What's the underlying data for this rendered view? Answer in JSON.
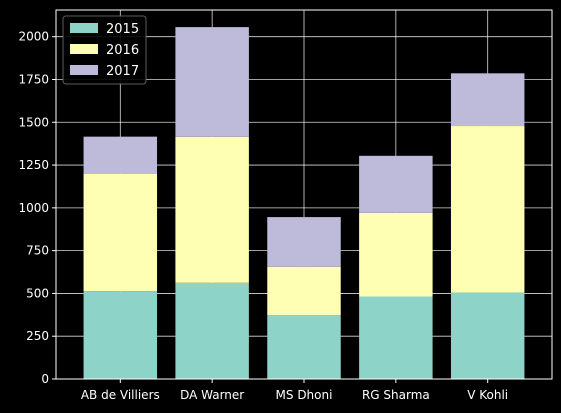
{
  "chart_data": {
    "type": "bar",
    "stacked": true,
    "categories": [
      "AB de Villiers",
      "DA Warner",
      "MS Dhoni",
      "RG Sharma",
      "V Kohli"
    ],
    "series": [
      {
        "name": "2015",
        "values": [
          513,
          562,
          372,
          482,
          505
        ],
        "color": "#8dd3c7"
      },
      {
        "name": "2016",
        "values": [
          687,
          853,
          284,
          489,
          973
        ],
        "color": "#ffffb3"
      },
      {
        "name": "2017",
        "values": [
          216,
          641,
          290,
          333,
          308
        ],
        "color": "#bebada"
      }
    ],
    "yticks": [
      0,
      250,
      500,
      750,
      1000,
      1250,
      1500,
      1750,
      2000
    ],
    "ylim": [
      0,
      2156
    ],
    "grid": true,
    "legend_position": "top-left",
    "title": "",
    "xlabel": "",
    "ylabel": ""
  }
}
